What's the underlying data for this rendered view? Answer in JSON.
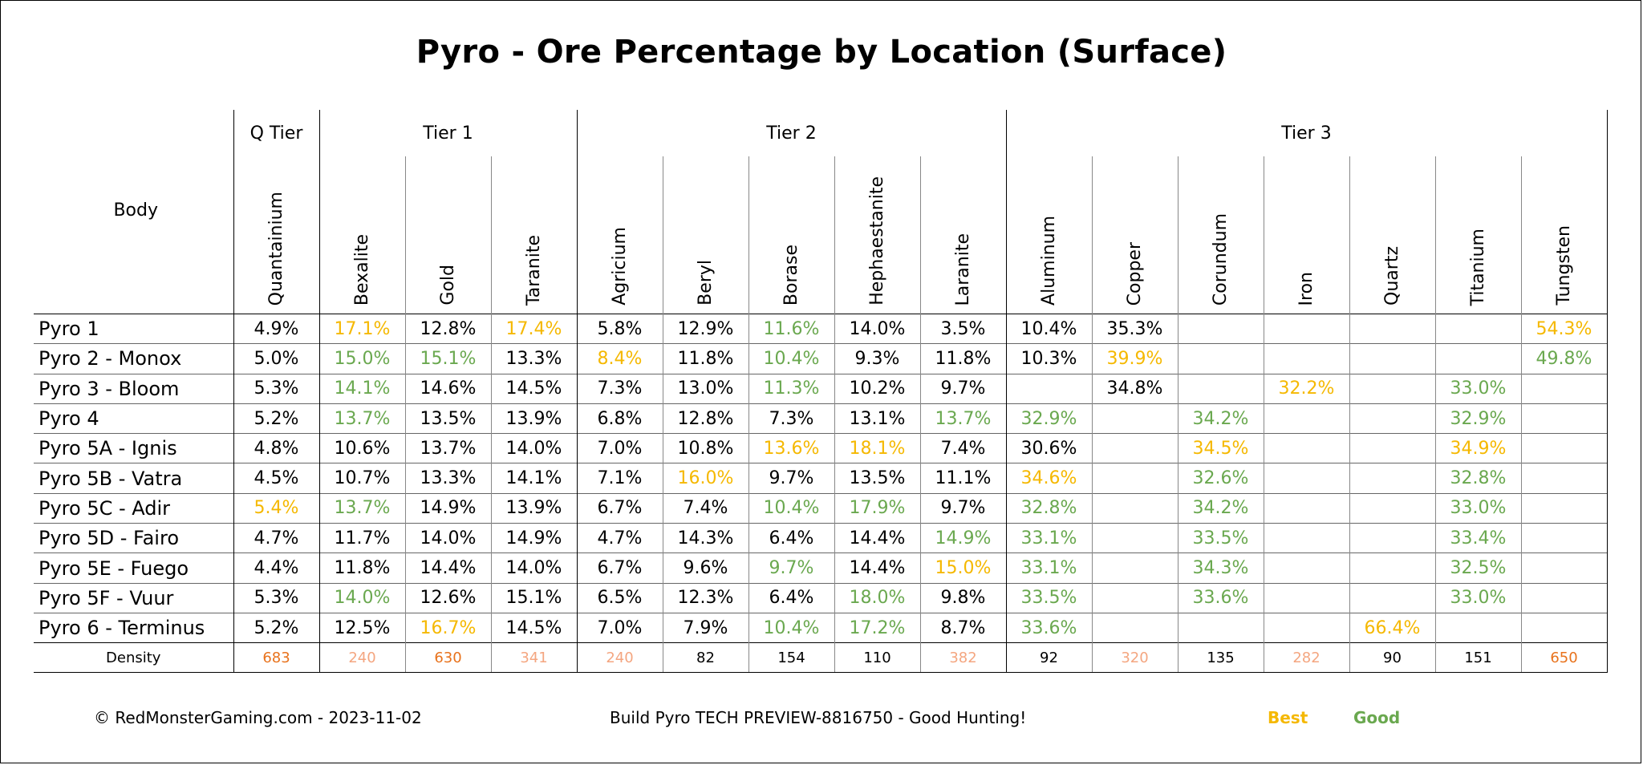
{
  "title": "Pyro - Ore Percentage by Location (Surface)",
  "body_header": "Body",
  "tiers": [
    {
      "label": "Q Tier",
      "span": 1
    },
    {
      "label": "Tier 1",
      "span": 3
    },
    {
      "label": "Tier 2",
      "span": 5
    },
    {
      "label": "Tier 3",
      "span": 7
    }
  ],
  "ores": [
    "Quantainium",
    "Bexalite",
    "Gold",
    "Taranite",
    "Agricium",
    "Beryl",
    "Borase",
    "Hephaestanite",
    "Laranite",
    "Aluminum",
    "Copper",
    "Corundum",
    "Iron",
    "Quartz",
    "Titanium",
    "Tungsten"
  ],
  "rows": [
    {
      "name": "Pyro 1",
      "cells": [
        {
          "v": "4.9%"
        },
        {
          "v": "17.1%",
          "h": "best"
        },
        {
          "v": "12.8%"
        },
        {
          "v": "17.4%",
          "h": "best"
        },
        {
          "v": "5.8%"
        },
        {
          "v": "12.9%"
        },
        {
          "v": "11.6%",
          "h": "good"
        },
        {
          "v": "14.0%"
        },
        {
          "v": "3.5%"
        },
        {
          "v": "10.4%"
        },
        {
          "v": "35.3%"
        },
        {
          "v": ""
        },
        {
          "v": ""
        },
        {
          "v": ""
        },
        {
          "v": ""
        },
        {
          "v": "54.3%",
          "h": "best"
        }
      ]
    },
    {
      "name": "Pyro 2 - Monox",
      "cells": [
        {
          "v": "5.0%"
        },
        {
          "v": "15.0%",
          "h": "good"
        },
        {
          "v": "15.1%",
          "h": "good"
        },
        {
          "v": "13.3%"
        },
        {
          "v": "8.4%",
          "h": "best"
        },
        {
          "v": "11.8%"
        },
        {
          "v": "10.4%",
          "h": "good"
        },
        {
          "v": "9.3%"
        },
        {
          "v": "11.8%"
        },
        {
          "v": "10.3%"
        },
        {
          "v": "39.9%",
          "h": "best"
        },
        {
          "v": ""
        },
        {
          "v": ""
        },
        {
          "v": ""
        },
        {
          "v": ""
        },
        {
          "v": "49.8%",
          "h": "good"
        }
      ]
    },
    {
      "name": "Pyro 3 - Bloom",
      "cells": [
        {
          "v": "5.3%"
        },
        {
          "v": "14.1%",
          "h": "good"
        },
        {
          "v": "14.6%"
        },
        {
          "v": "14.5%"
        },
        {
          "v": "7.3%"
        },
        {
          "v": "13.0%"
        },
        {
          "v": "11.3%",
          "h": "good"
        },
        {
          "v": "10.2%"
        },
        {
          "v": "9.7%"
        },
        {
          "v": ""
        },
        {
          "v": "34.8%"
        },
        {
          "v": ""
        },
        {
          "v": "32.2%",
          "h": "best"
        },
        {
          "v": ""
        },
        {
          "v": "33.0%",
          "h": "good"
        },
        {
          "v": ""
        }
      ]
    },
    {
      "name": "Pyro 4",
      "cells": [
        {
          "v": "5.2%"
        },
        {
          "v": "13.7%",
          "h": "good"
        },
        {
          "v": "13.5%"
        },
        {
          "v": "13.9%"
        },
        {
          "v": "6.8%"
        },
        {
          "v": "12.8%"
        },
        {
          "v": "7.3%"
        },
        {
          "v": "13.1%"
        },
        {
          "v": "13.7%",
          "h": "good"
        },
        {
          "v": "32.9%",
          "h": "good"
        },
        {
          "v": ""
        },
        {
          "v": "34.2%",
          "h": "good"
        },
        {
          "v": ""
        },
        {
          "v": ""
        },
        {
          "v": "32.9%",
          "h": "good"
        },
        {
          "v": ""
        }
      ]
    },
    {
      "name": "Pyro 5A - Ignis",
      "cells": [
        {
          "v": "4.8%"
        },
        {
          "v": "10.6%"
        },
        {
          "v": "13.7%"
        },
        {
          "v": "14.0%"
        },
        {
          "v": "7.0%"
        },
        {
          "v": "10.8%"
        },
        {
          "v": "13.6%",
          "h": "best"
        },
        {
          "v": "18.1%",
          "h": "best"
        },
        {
          "v": "7.4%"
        },
        {
          "v": "30.6%"
        },
        {
          "v": ""
        },
        {
          "v": "34.5%",
          "h": "best"
        },
        {
          "v": ""
        },
        {
          "v": ""
        },
        {
          "v": "34.9%",
          "h": "best"
        },
        {
          "v": ""
        }
      ]
    },
    {
      "name": "Pyro 5B - Vatra",
      "cells": [
        {
          "v": "4.5%"
        },
        {
          "v": "10.7%"
        },
        {
          "v": "13.3%"
        },
        {
          "v": "14.1%"
        },
        {
          "v": "7.1%"
        },
        {
          "v": "16.0%",
          "h": "best"
        },
        {
          "v": "9.7%"
        },
        {
          "v": "13.5%"
        },
        {
          "v": "11.1%"
        },
        {
          "v": "34.6%",
          "h": "best"
        },
        {
          "v": ""
        },
        {
          "v": "32.6%",
          "h": "good"
        },
        {
          "v": ""
        },
        {
          "v": ""
        },
        {
          "v": "32.8%",
          "h": "good"
        },
        {
          "v": ""
        }
      ]
    },
    {
      "name": "Pyro 5C - Adir",
      "cells": [
        {
          "v": "5.4%",
          "h": "best"
        },
        {
          "v": "13.7%",
          "h": "good"
        },
        {
          "v": "14.9%"
        },
        {
          "v": "13.9%"
        },
        {
          "v": "6.7%"
        },
        {
          "v": "7.4%"
        },
        {
          "v": "10.4%",
          "h": "good"
        },
        {
          "v": "17.9%",
          "h": "good"
        },
        {
          "v": "9.7%"
        },
        {
          "v": "32.8%",
          "h": "good"
        },
        {
          "v": ""
        },
        {
          "v": "34.2%",
          "h": "good"
        },
        {
          "v": ""
        },
        {
          "v": ""
        },
        {
          "v": "33.0%",
          "h": "good"
        },
        {
          "v": ""
        }
      ]
    },
    {
      "name": "Pyro 5D - Fairo",
      "cells": [
        {
          "v": "4.7%"
        },
        {
          "v": "11.7%"
        },
        {
          "v": "14.0%"
        },
        {
          "v": "14.9%"
        },
        {
          "v": "4.7%"
        },
        {
          "v": "14.3%"
        },
        {
          "v": "6.4%"
        },
        {
          "v": "14.4%"
        },
        {
          "v": "14.9%",
          "h": "good"
        },
        {
          "v": "33.1%",
          "h": "good"
        },
        {
          "v": ""
        },
        {
          "v": "33.5%",
          "h": "good"
        },
        {
          "v": ""
        },
        {
          "v": ""
        },
        {
          "v": "33.4%",
          "h": "good"
        },
        {
          "v": ""
        }
      ]
    },
    {
      "name": "Pyro 5E - Fuego",
      "cells": [
        {
          "v": "4.4%"
        },
        {
          "v": "11.8%"
        },
        {
          "v": "14.4%"
        },
        {
          "v": "14.0%"
        },
        {
          "v": "6.7%"
        },
        {
          "v": "9.6%"
        },
        {
          "v": "9.7%",
          "h": "good"
        },
        {
          "v": "14.4%"
        },
        {
          "v": "15.0%",
          "h": "best"
        },
        {
          "v": "33.1%",
          "h": "good"
        },
        {
          "v": ""
        },
        {
          "v": "34.3%",
          "h": "good"
        },
        {
          "v": ""
        },
        {
          "v": ""
        },
        {
          "v": "32.5%",
          "h": "good"
        },
        {
          "v": ""
        }
      ]
    },
    {
      "name": "Pyro 5F - Vuur",
      "cells": [
        {
          "v": "5.3%"
        },
        {
          "v": "14.0%",
          "h": "good"
        },
        {
          "v": "12.6%"
        },
        {
          "v": "15.1%"
        },
        {
          "v": "6.5%"
        },
        {
          "v": "12.3%"
        },
        {
          "v": "6.4%"
        },
        {
          "v": "18.0%",
          "h": "good"
        },
        {
          "v": "9.8%"
        },
        {
          "v": "33.5%",
          "h": "good"
        },
        {
          "v": ""
        },
        {
          "v": "33.6%",
          "h": "good"
        },
        {
          "v": ""
        },
        {
          "v": ""
        },
        {
          "v": "33.0%",
          "h": "good"
        },
        {
          "v": ""
        }
      ]
    },
    {
      "name": "Pyro 6 - Terminus",
      "cells": [
        {
          "v": "5.2%"
        },
        {
          "v": "12.5%"
        },
        {
          "v": "16.7%",
          "h": "best"
        },
        {
          "v": "14.5%"
        },
        {
          "v": "7.0%"
        },
        {
          "v": "7.9%"
        },
        {
          "v": "10.4%",
          "h": "good"
        },
        {
          "v": "17.2%",
          "h": "good"
        },
        {
          "v": "8.7%"
        },
        {
          "v": "33.6%",
          "h": "good"
        },
        {
          "v": ""
        },
        {
          "v": ""
        },
        {
          "v": ""
        },
        {
          "v": "66.4%",
          "h": "best"
        },
        {
          "v": ""
        },
        {
          "v": ""
        }
      ]
    }
  ],
  "density": {
    "label": "Density",
    "cells": [
      {
        "v": "683",
        "h": "high"
      },
      {
        "v": "240",
        "h": "mid"
      },
      {
        "v": "630",
        "h": "high"
      },
      {
        "v": "341",
        "h": "mid"
      },
      {
        "v": "240",
        "h": "mid"
      },
      {
        "v": "82"
      },
      {
        "v": "154"
      },
      {
        "v": "110"
      },
      {
        "v": "382",
        "h": "mid"
      },
      {
        "v": "92"
      },
      {
        "v": "320",
        "h": "mid"
      },
      {
        "v": "135"
      },
      {
        "v": "282",
        "h": "mid"
      },
      {
        "v": "90"
      },
      {
        "v": "151"
      },
      {
        "v": "650",
        "h": "high"
      }
    ]
  },
  "footer": {
    "copyright": "© RedMonsterGaming.com - 2023-11-02",
    "build": "Build Pyro TECH PREVIEW-8816750 - Good Hunting!",
    "legend_best": "Best",
    "legend_good": "Good"
  },
  "colors": {
    "best": "#f5b800",
    "good": "#6aa84f",
    "density_high": "#e8721c",
    "density_mid": "#f4a680"
  }
}
